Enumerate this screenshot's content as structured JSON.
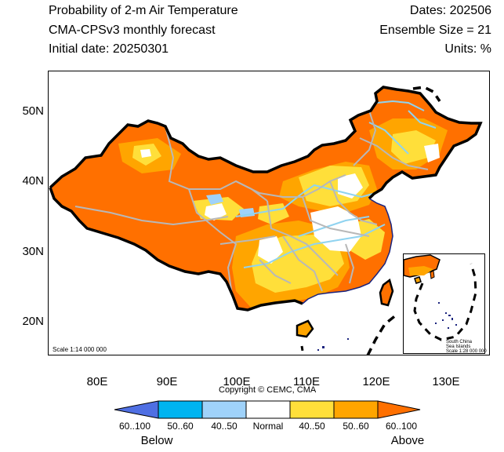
{
  "header": {
    "title": "Probability of 2-m Air Temperature",
    "model": "CMA-CPSv3 monthly forecast",
    "initial_date": "Initial date: 20250301",
    "dates": "Dates: 202506",
    "ensemble": "Ensemble Size = 21",
    "units": "Units: %"
  },
  "axes": {
    "lat_ticks": [
      "50N",
      "40N",
      "30N",
      "20N"
    ],
    "lon_ticks": [
      "80E",
      "90E",
      "100E",
      "110E",
      "120E",
      "130E"
    ]
  },
  "map": {
    "copyright": "Copyright © CEMC, CMA",
    "scale_main": "Scale 1:14 000 000",
    "inset_lines": [
      "South China",
      "Sea Islands",
      "Scale 1:28 000 000"
    ]
  },
  "colorbar": {
    "colors": {
      "below_60_100": "#4f6fe3",
      "below_50_60": "#00b4f0",
      "below_40_50": "#9fd2fa",
      "normal": "#ffffff",
      "above_40_50": "#ffdf3a",
      "above_50_60": "#ffa500",
      "above_60_100": "#ff7000"
    },
    "labels": [
      "60..100",
      "50..60",
      "40..50",
      "Normal",
      "40..50",
      "50..60",
      "60..100"
    ],
    "below_text": "Below",
    "above_text": "Above"
  }
}
